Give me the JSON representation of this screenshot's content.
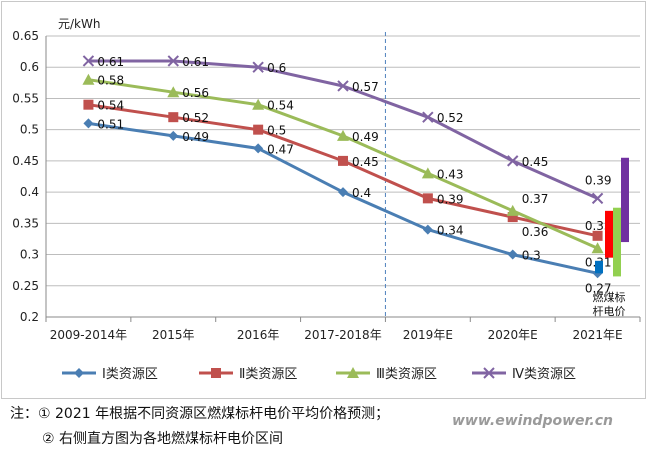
{
  "chart_data": {
    "type": "line",
    "ylabel": "元/kWh",
    "ylim": [
      0.2,
      0.65
    ],
    "yticks": [
      "0.2",
      "0.25",
      "0.3",
      "0.35",
      "0.4",
      "0.45",
      "0.5",
      "0.55",
      "0.6",
      "0.65"
    ],
    "categories": [
      "2009-2014年",
      "2015年",
      "2016年",
      "2017-2018年",
      "2019年E",
      "2020年E",
      "2021年E"
    ],
    "grid": true,
    "divider_after_category": "2017-2018年",
    "series": [
      {
        "name": "Ⅰ类资源区",
        "color": "#4a7eb3",
        "marker": "diamond",
        "values": [
          0.51,
          0.49,
          0.47,
          0.4,
          0.34,
          0.3,
          0.27
        ],
        "labels": [
          "0.51",
          "0.49",
          "0.47",
          "0.4",
          "0.34",
          "0.3",
          "0.27"
        ]
      },
      {
        "name": "Ⅱ类资源区",
        "color": "#c0504d",
        "marker": "square",
        "values": [
          0.54,
          0.52,
          0.5,
          0.45,
          0.39,
          0.36,
          0.33
        ],
        "labels": [
          "0.54",
          "0.52",
          "0.5",
          "0.45",
          "0.39",
          "0.36",
          "0.33"
        ]
      },
      {
        "name": "Ⅲ类资源区",
        "color": "#9bbb59",
        "marker": "triangle",
        "values": [
          0.58,
          0.56,
          0.54,
          0.49,
          0.43,
          0.37,
          0.31
        ],
        "labels": [
          "0.58",
          "0.56",
          "0.54",
          "0.49",
          "0.43",
          "0.37",
          "0.31"
        ]
      },
      {
        "name": "Ⅳ类资源区",
        "color": "#8064a2",
        "marker": "x",
        "values": [
          0.61,
          0.61,
          0.6,
          0.57,
          0.52,
          0.45,
          0.39
        ],
        "labels": [
          "0.61",
          "0.61",
          "0.6",
          "0.57",
          "0.52",
          "0.45",
          "0.39"
        ]
      }
    ],
    "coal_price_ranges": {
      "label_line1": "燃煤标",
      "label_line2": "杆电价",
      "bars": [
        {
          "series": "Ⅰ类资源区",
          "color": "#0070c0",
          "low": 0.27,
          "high": 0.29
        },
        {
          "series": "Ⅱ类资源区",
          "color": "#ff0000",
          "low": 0.295,
          "high": 0.37
        },
        {
          "series": "Ⅲ类资源区",
          "color": "#92d050",
          "low": 0.265,
          "high": 0.375
        },
        {
          "series": "Ⅳ类资源区",
          "color": "#7030a0",
          "low": 0.32,
          "high": 0.455
        }
      ]
    }
  },
  "notes": {
    "line1": "注：① 2021 年根据不同资源区燃煤标杆电价平均价格预测；",
    "line2": "② 右侧直方图为各地燃煤标杆电价区间"
  },
  "watermark": "www.ewindpower.cn"
}
